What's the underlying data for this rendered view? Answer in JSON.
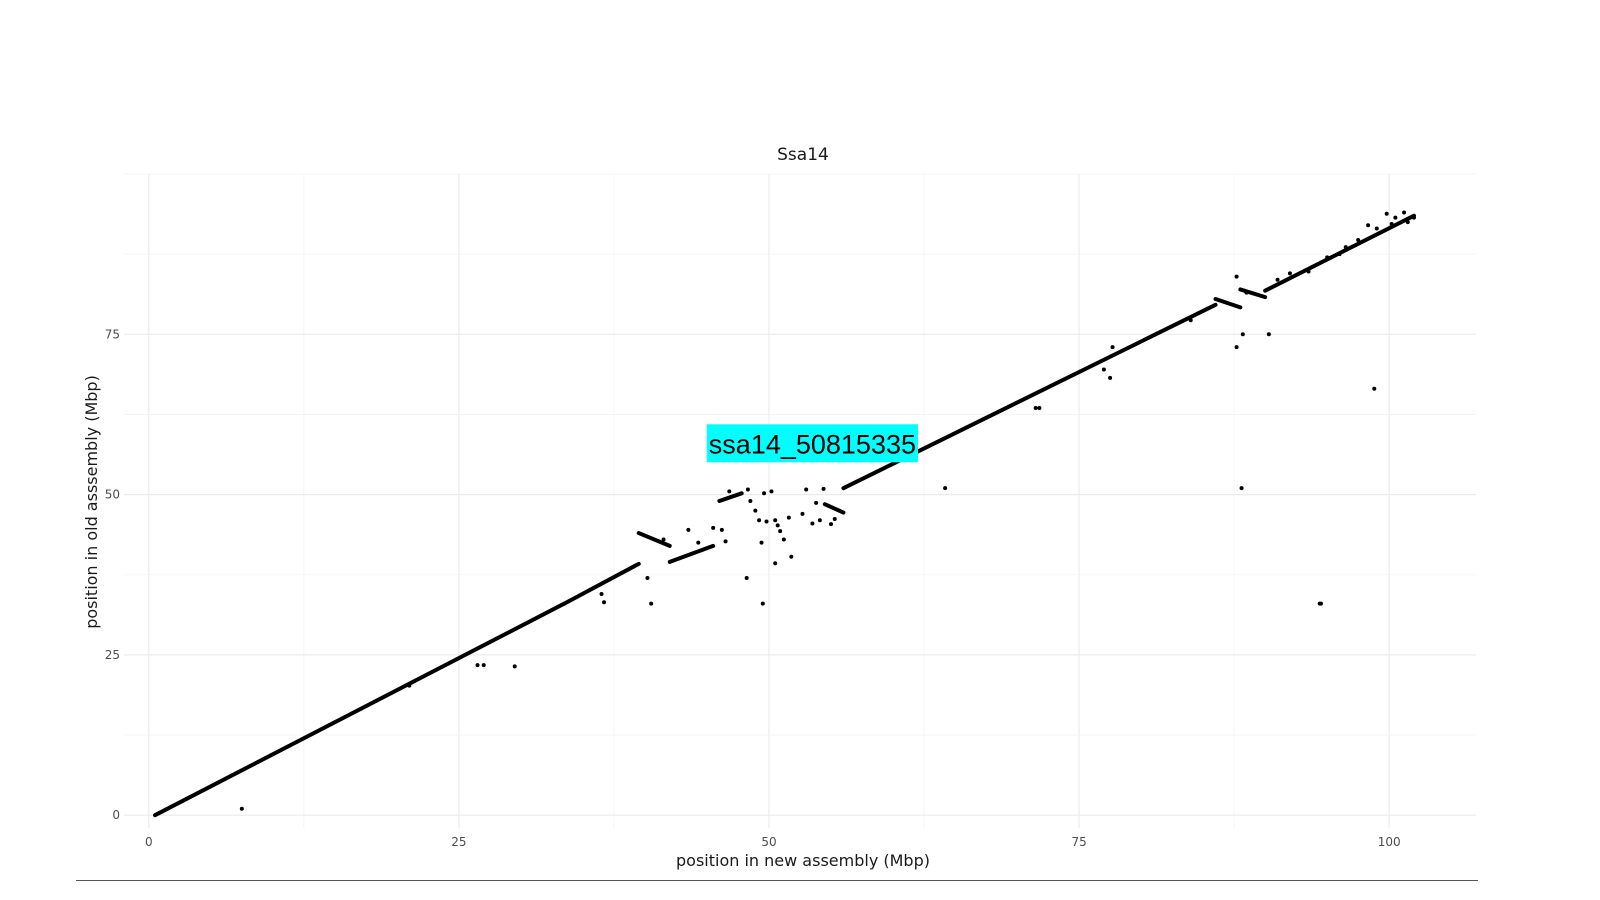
{
  "chart_data": {
    "type": "scatter",
    "title": "Ssa14",
    "xlabel": "position in new assembly (Mbp)",
    "ylabel": "position in old asssembly (Mbp)",
    "xlim": [
      -2,
      107
    ],
    "ylim": [
      -2,
      100
    ],
    "x_ticks": [
      0,
      25,
      50,
      75,
      100
    ],
    "y_ticks": [
      0,
      25,
      50,
      75
    ],
    "grid": true,
    "legend": "none",
    "annotation": {
      "text": "ssa14_50815335",
      "x": 53.5,
      "y": 58,
      "background": "#00ffff"
    },
    "series": [
      {
        "segments": [
          {
            "x": [
              0.5,
              33.5
            ],
            "y": [
              0,
              33
            ]
          },
          {
            "x": [
              33.5,
              39.5
            ],
            "y": [
              33,
              39.2
            ]
          },
          {
            "x": [
              39.5,
              42.0
            ],
            "y": [
              44.0,
              42.0
            ]
          },
          {
            "x": [
              42.0,
              45.5
            ],
            "y": [
              39.5,
              42.0
            ]
          },
          {
            "x": [
              46.0,
              47.8
            ],
            "y": [
              49.0,
              50.2
            ]
          },
          {
            "x": [
              54.5,
              56.0
            ],
            "y": [
              48.5,
              47.2
            ]
          },
          {
            "x": [
              56.0,
              86.0
            ],
            "y": [
              51.0,
              79.6
            ]
          },
          {
            "x": [
              86.0,
              88.0
            ],
            "y": [
              80.5,
              79.2
            ]
          },
          {
            "x": [
              88.0,
              90.0
            ],
            "y": [
              82.0,
              80.8
            ]
          },
          {
            "x": [
              90.0,
              102.0
            ],
            "y": [
              81.8,
              93.5
            ]
          }
        ],
        "points": [
          {
            "x": 7.5,
            "y": 1
          },
          {
            "x": 21,
            "y": 20.2
          },
          {
            "x": 26.5,
            "y": 23.4
          },
          {
            "x": 27,
            "y": 23.4
          },
          {
            "x": 29.5,
            "y": 23.2
          },
          {
            "x": 36.5,
            "y": 34.5
          },
          {
            "x": 36.7,
            "y": 33.2
          },
          {
            "x": 40.2,
            "y": 37
          },
          {
            "x": 40.5,
            "y": 33
          },
          {
            "x": 41.5,
            "y": 43
          },
          {
            "x": 43.5,
            "y": 44.5
          },
          {
            "x": 44.3,
            "y": 42.5
          },
          {
            "x": 45.5,
            "y": 44.8
          },
          {
            "x": 46.2,
            "y": 44.5
          },
          {
            "x": 46.5,
            "y": 42.7
          },
          {
            "x": 46.8,
            "y": 50.5
          },
          {
            "x": 48.3,
            "y": 50.8
          },
          {
            "x": 48.5,
            "y": 49
          },
          {
            "x": 48.9,
            "y": 47.5
          },
          {
            "x": 49.2,
            "y": 46
          },
          {
            "x": 48.2,
            "y": 37
          },
          {
            "x": 49.4,
            "y": 42.5
          },
          {
            "x": 49.6,
            "y": 50.2
          },
          {
            "x": 49.8,
            "y": 45.8
          },
          {
            "x": 50.2,
            "y": 50.5
          },
          {
            "x": 50.5,
            "y": 46
          },
          {
            "x": 50.7,
            "y": 45.2
          },
          {
            "x": 50.9,
            "y": 44.3
          },
          {
            "x": 51.2,
            "y": 43
          },
          {
            "x": 51.6,
            "y": 46.4
          },
          {
            "x": 51.8,
            "y": 40.3
          },
          {
            "x": 50.5,
            "y": 39.3
          },
          {
            "x": 49.5,
            "y": 33
          },
          {
            "x": 52.7,
            "y": 47
          },
          {
            "x": 53,
            "y": 50.8
          },
          {
            "x": 53.5,
            "y": 45.5
          },
          {
            "x": 53.8,
            "y": 48.7
          },
          {
            "x": 54.1,
            "y": 46
          },
          {
            "x": 54.4,
            "y": 50.9
          },
          {
            "x": 55,
            "y": 45.4
          },
          {
            "x": 55.3,
            "y": 46.2
          },
          {
            "x": 64.2,
            "y": 51
          },
          {
            "x": 71.5,
            "y": 63.5
          },
          {
            "x": 71.8,
            "y": 63.5
          },
          {
            "x": 77,
            "y": 69.5
          },
          {
            "x": 77.5,
            "y": 68.2
          },
          {
            "x": 77.7,
            "y": 73
          },
          {
            "x": 84,
            "y": 77.2
          },
          {
            "x": 87.7,
            "y": 84
          },
          {
            "x": 87.7,
            "y": 73
          },
          {
            "x": 88.2,
            "y": 75
          },
          {
            "x": 88.1,
            "y": 51
          },
          {
            "x": 88.5,
            "y": 81.5
          },
          {
            "x": 90.3,
            "y": 75
          },
          {
            "x": 94.4,
            "y": 33
          },
          {
            "x": 94.5,
            "y": 33
          },
          {
            "x": 98.8,
            "y": 66.5
          },
          {
            "x": 91,
            "y": 83.5
          },
          {
            "x": 92,
            "y": 84.5
          },
          {
            "x": 93.5,
            "y": 84.8
          },
          {
            "x": 95,
            "y": 87
          },
          {
            "x": 96,
            "y": 87.5
          },
          {
            "x": 97.5,
            "y": 89.7
          },
          {
            "x": 98.3,
            "y": 92
          },
          {
            "x": 99,
            "y": 91.5
          },
          {
            "x": 99.8,
            "y": 93.8
          },
          {
            "x": 100.5,
            "y": 93.2
          },
          {
            "x": 101.2,
            "y": 94
          },
          {
            "x": 101.5,
            "y": 92.5
          },
          {
            "x": 102,
            "y": 93.2
          },
          {
            "x": 100.2,
            "y": 92.2
          },
          {
            "x": 96.5,
            "y": 88.6
          }
        ]
      }
    ]
  }
}
